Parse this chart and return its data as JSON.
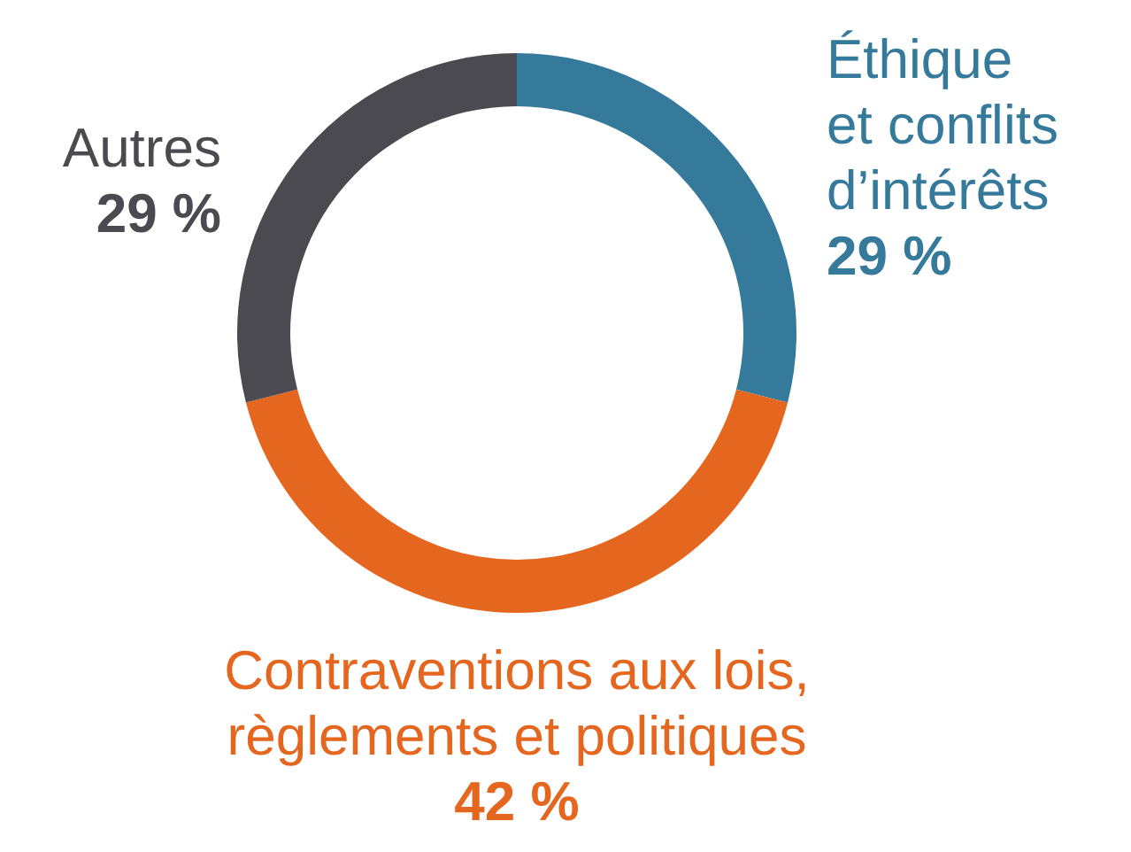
{
  "chart_data": {
    "type": "donut",
    "categories": [
      "Éthique\net conflits\nd’intérêts",
      "Contraventions aux lois,\nrèglements et politiques",
      "Autres"
    ],
    "values": [
      29,
      42,
      29
    ],
    "colors": [
      "#357a9b",
      "#e5661e",
      "#4b4a50"
    ],
    "value_labels": [
      "29 %",
      "42 %",
      "29 %"
    ],
    "legend": false
  }
}
